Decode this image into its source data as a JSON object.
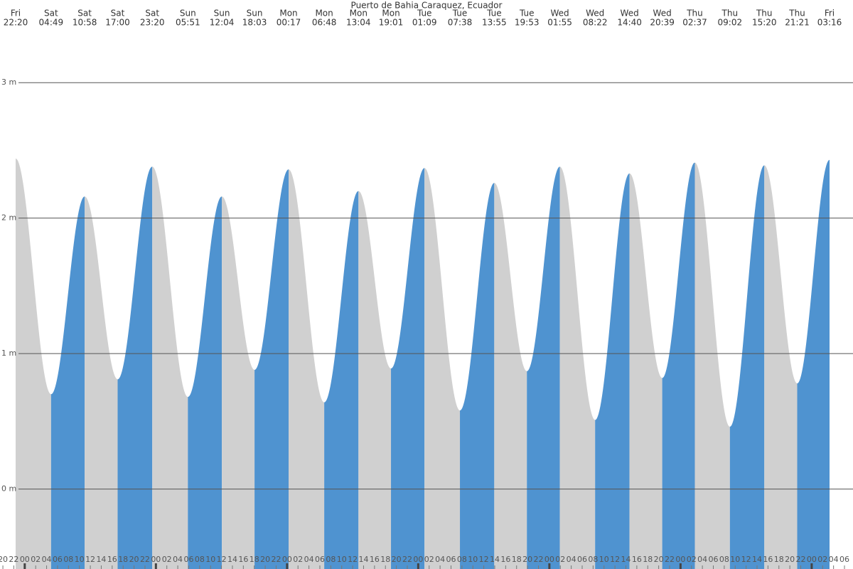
{
  "chart_data": {
    "type": "tide",
    "title": "Puerto de Bahia Caraquez, Ecuador",
    "rising_color": "#4f93d0",
    "falling_color": "#d0d0d0",
    "ylim": [
      -0.59,
      3.61
    ],
    "yticks": [
      {
        "value": 0,
        "label": "0 m"
      },
      {
        "value": 1,
        "label": "1 m"
      },
      {
        "value": 2,
        "label": "2 m"
      },
      {
        "value": 3,
        "label": "3 m"
      }
    ],
    "grid": true,
    "extremes": [
      {
        "day": "Fri",
        "time": "22:20",
        "height": 2.44
      },
      {
        "day": "Sat",
        "time": "04:49",
        "height": 0.7
      },
      {
        "day": "Sat",
        "time": "10:58",
        "height": 2.16
      },
      {
        "day": "Sat",
        "time": "17:00",
        "height": 0.81
      },
      {
        "day": "Sat",
        "time": "23:20",
        "height": 2.38
      },
      {
        "day": "Sun",
        "time": "05:51",
        "height": 0.68
      },
      {
        "day": "Sun",
        "time": "12:04",
        "height": 2.16
      },
      {
        "day": "Sun",
        "time": "18:03",
        "height": 0.88
      },
      {
        "day": "Mon",
        "time": "00:17",
        "height": 2.36
      },
      {
        "day": "Mon",
        "time": "06:48",
        "height": 0.64
      },
      {
        "day": "Mon",
        "time": "13:04",
        "height": 2.2
      },
      {
        "day": "Mon",
        "time": "19:01",
        "height": 0.89
      },
      {
        "day": "Tue",
        "time": "01:09",
        "height": 2.37
      },
      {
        "day": "Tue",
        "time": "07:38",
        "height": 0.58
      },
      {
        "day": "Tue",
        "time": "13:55",
        "height": 2.26
      },
      {
        "day": "Tue",
        "time": "19:53",
        "height": 0.87
      },
      {
        "day": "Wed",
        "time": "01:55",
        "height": 2.38
      },
      {
        "day": "Wed",
        "time": "08:22",
        "height": 0.51
      },
      {
        "day": "Wed",
        "time": "14:40",
        "height": 2.33
      },
      {
        "day": "Wed",
        "time": "20:39",
        "height": 0.82
      },
      {
        "day": "Thu",
        "time": "02:37",
        "height": 2.41
      },
      {
        "day": "Thu",
        "time": "09:02",
        "height": 0.46
      },
      {
        "day": "Thu",
        "time": "15:20",
        "height": 2.39
      },
      {
        "day": "Thu",
        "time": "21:21",
        "height": 0.78
      },
      {
        "day": "Fri",
        "time": "03:16",
        "height": 2.43
      }
    ],
    "hour_labels": [
      "20",
      "22",
      "00",
      "02",
      "04",
      "06",
      "08",
      "10",
      "12",
      "14",
      "16",
      "18",
      "20",
      "22",
      "00",
      "02",
      "04",
      "06",
      "08",
      "10",
      "12",
      "14",
      "16",
      "18",
      "20",
      "22",
      "00",
      "02",
      "04",
      "06",
      "08",
      "10",
      "12",
      "14",
      "16",
      "18",
      "20",
      "22",
      "00",
      "02",
      "04",
      "06",
      "08",
      "10",
      "12",
      "14",
      "16",
      "18",
      "20",
      "22",
      "00",
      "02",
      "04",
      "06",
      "08",
      "10",
      "12",
      "14",
      "16",
      "18",
      "20",
      "22",
      "00",
      "02",
      "04",
      "06",
      "08",
      "10",
      "12",
      "14",
      "16",
      "18",
      "20",
      "22",
      "00",
      "02",
      "04",
      "06"
    ]
  }
}
